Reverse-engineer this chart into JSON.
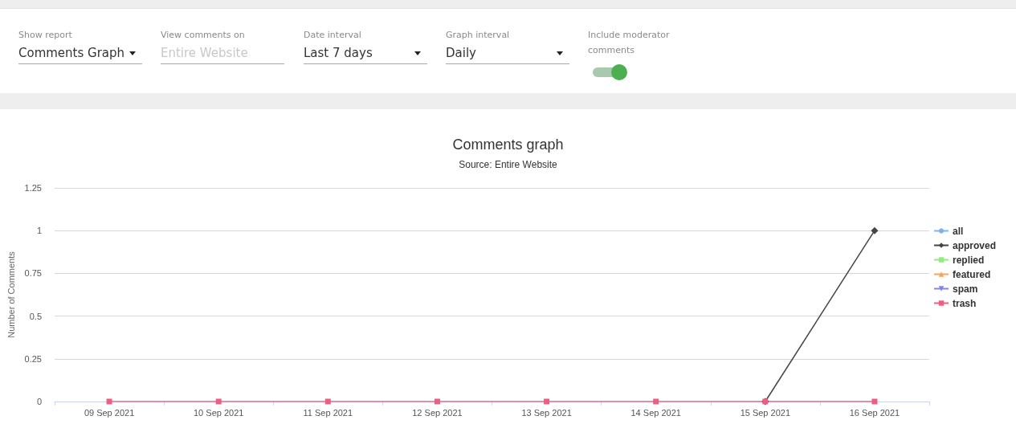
{
  "chart_data": {
    "type": "line",
    "title": "Comments graph",
    "subtitle": "Source: Entire Website",
    "ylabel": "Number of Comments",
    "annotations": [
      "Show report",
      "Comments Graph",
      "View comments on",
      "Entire Website",
      "Date interval",
      "Last 7 days",
      "Graph interval",
      "Daily",
      "Include moderator comments"
    ],
    "categories": [
      "09 Sep 2021",
      "10 Sep 2021",
      "11 Sep 2021",
      "12 Sep 2021",
      "13 Sep 2021",
      "14 Sep 2021",
      "15 Sep 2021",
      "16 Sep 2021"
    ],
    "series": [
      {
        "name": "all",
        "color": "#7cb5ec",
        "marker": "circle",
        "values": [
          null,
          null,
          null,
          null,
          null,
          null,
          null,
          null
        ]
      },
      {
        "name": "approved",
        "color": "#434348",
        "marker": "diamond",
        "values": [
          null,
          null,
          null,
          null,
          null,
          null,
          0,
          1
        ]
      },
      {
        "name": "replied",
        "color": "#90ed7d",
        "marker": "square",
        "values": [
          null,
          null,
          null,
          null,
          null,
          null,
          null,
          null
        ]
      },
      {
        "name": "featured",
        "color": "#f7a35c",
        "marker": "triangle",
        "values": [
          null,
          null,
          null,
          null,
          null,
          null,
          null,
          null
        ]
      },
      {
        "name": "spam",
        "color": "#8085e9",
        "marker": "triangle-down",
        "values": [
          null,
          null,
          null,
          null,
          null,
          null,
          null,
          null
        ]
      },
      {
        "name": "trash",
        "color": "#f15c80",
        "marker": "square",
        "values": [
          0,
          0,
          0,
          0,
          0,
          0,
          0,
          0
        ]
      }
    ],
    "ylim": [
      0,
      1.25
    ],
    "yticks": [
      0,
      0.25,
      0.5,
      0.75,
      1,
      1.25
    ],
    "grid": "y",
    "legend": "right",
    "line_style": "solid"
  }
}
